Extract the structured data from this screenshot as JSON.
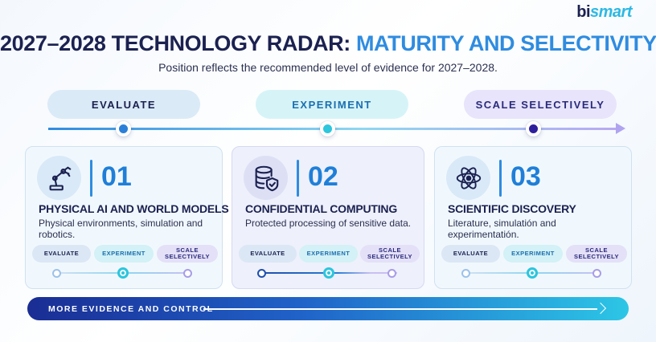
{
  "logo": {
    "part1": "bi",
    "part2": "smart"
  },
  "header": {
    "title_part1": "2027–2028 TECHNOLOGY RADAR: ",
    "title_part2": "MATURITY AND SELECTIVITY",
    "subtitle": "Position reflects the recommended level of evidence for 2027–2028."
  },
  "stages": [
    {
      "label": "EVALUATE",
      "color": "#2b7fd8"
    },
    {
      "label": "EXPERIMENT",
      "color": "#2cc6dd"
    },
    {
      "label": "SCALE SELECTIVELY",
      "color": "#2e1f9c"
    }
  ],
  "cards": [
    {
      "number": "01",
      "icon": "robot-arm-icon",
      "title": "PHYSICAL AI AND WORLD MODELS",
      "description": "Physical environments, simulation and robotics.",
      "pills": [
        "EVALUATE",
        "EXPERIMENT",
        "SCALE SELECTIVELY"
      ],
      "position": "EXPERIMENT"
    },
    {
      "number": "02",
      "icon": "database-shield-icon",
      "title": "CONFIDENTIAL COMPUTING",
      "description": "Protected processing of sensitive data.",
      "pills": [
        "EVALUATE",
        "EXPERIMENT",
        "SCALE SELECTIVELY"
      ],
      "position": "EXPERIMENT"
    },
    {
      "number": "03",
      "icon": "atom-icon",
      "title": "SCIENTIFIC DISCOVERY",
      "description": "Literature, simulatión and experimentatión.",
      "pills": [
        "EVALUATE",
        "EXPERIMENT",
        "SCALE SELECTIVELY"
      ],
      "position": "EXPERIMENT"
    }
  ],
  "footer": {
    "label": "MORE EVIDENCE AND CONTROL"
  },
  "colors": {
    "navy": "#1b2150",
    "accent": "#2f8ce0",
    "cyan": "#2cc6dd",
    "violet": "#2e1f9c"
  }
}
